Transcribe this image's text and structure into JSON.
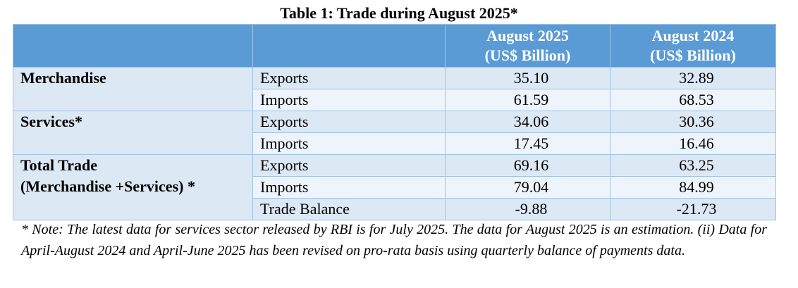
{
  "title": "Table 1: Trade during August 2025*",
  "headers": {
    "col_group": "",
    "col_item": "",
    "col_2025_line1": "August 2025",
    "col_2025_line2": "(US$ Billion)",
    "col_2024_line1": "August 2024",
    "col_2024_line2": "(US$ Billion)"
  },
  "groups": {
    "merchandise": "Merchandise",
    "services": "Services*",
    "total_line1": "Total Trade",
    "total_line2": "(Merchandise +Services) *"
  },
  "rows": [
    {
      "item": "Exports",
      "aug2025": "35.10",
      "aug2024": "32.89"
    },
    {
      "item": "Imports",
      "aug2025": "61.59",
      "aug2024": "68.53"
    },
    {
      "item": "Exports",
      "aug2025": "34.06",
      "aug2024": "30.36"
    },
    {
      "item": "Imports",
      "aug2025": "17.45",
      "aug2024": "16.46"
    },
    {
      "item": "Exports",
      "aug2025": "69.16",
      "aug2024": "63.25"
    },
    {
      "item": "Imports",
      "aug2025": "79.04",
      "aug2024": "84.99"
    },
    {
      "item": "Trade Balance",
      "aug2025": "-9.88",
      "aug2024": "-21.73"
    }
  ],
  "note": "* Note: The latest data for services sector released by RBI is for July 2025. The data for August 2025 is an estimation. (ii) Data for April-August 2024 and April-June 2025 has been revised on pro-rata basis using quarterly balance of payments data."
}
